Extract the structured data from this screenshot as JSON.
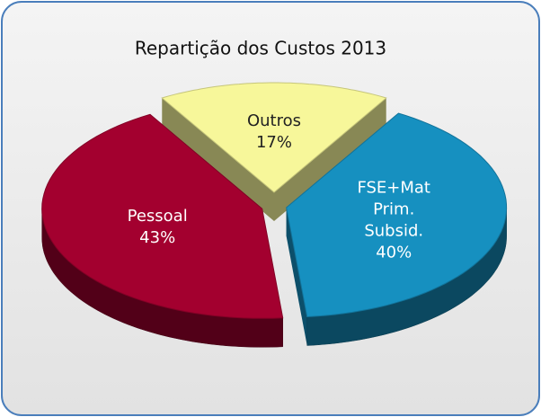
{
  "chart_data": {
    "type": "pie3d",
    "title": "Repartição dos Custos 2013",
    "categories": [
      "Outros",
      "FSE+Mat Prim. Subsid.",
      "Pessoal"
    ],
    "values": [
      17,
      40,
      43
    ],
    "value_labels": [
      "17%",
      "40%",
      "43%"
    ],
    "colors": [
      "#f7f79a",
      "#1690c0",
      "#a3002f"
    ],
    "label_colors": [
      "#222222",
      "#ffffff",
      "#ffffff"
    ],
    "exploded": true
  }
}
